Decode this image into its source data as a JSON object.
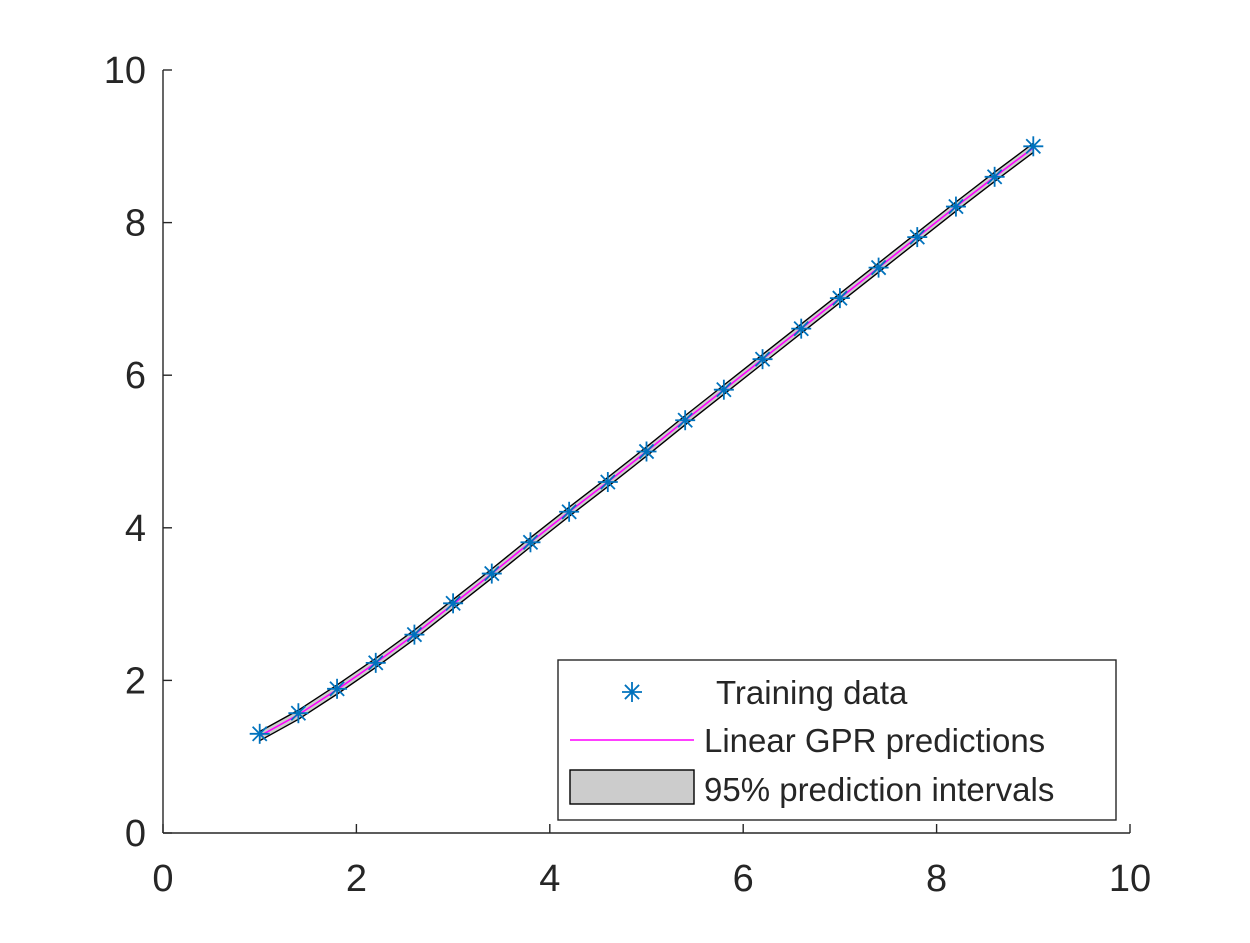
{
  "chart_data": {
    "type": "line",
    "xlim": [
      0,
      10
    ],
    "ylim": [
      0,
      10
    ],
    "x_ticks": [
      "0",
      "2",
      "4",
      "6",
      "8",
      "10"
    ],
    "y_ticks": [
      "0",
      "2",
      "4",
      "6",
      "8",
      "10"
    ],
    "grid": false,
    "legend_position": "bottom-right",
    "series": [
      {
        "name": "Training data",
        "kind": "scatter",
        "marker": "asterisk",
        "color": "#0072BD",
        "x": [
          1.0,
          1.4,
          1.8,
          2.2,
          2.6,
          3.0,
          3.4,
          3.8,
          4.2,
          4.6,
          5.0,
          5.4,
          5.8,
          6.2,
          6.6,
          7.0,
          7.4,
          7.8,
          8.2,
          8.6,
          9.0
        ],
        "y": [
          1.3,
          1.57,
          1.89,
          2.23,
          2.6,
          3.01,
          3.4,
          3.81,
          4.21,
          4.6,
          5.0,
          5.41,
          5.81,
          6.21,
          6.61,
          7.01,
          7.41,
          7.81,
          8.21,
          8.6,
          9.0
        ]
      },
      {
        "name": "Linear GPR predictions",
        "kind": "line",
        "color": "#FF00FF",
        "x": [
          1.0,
          1.4,
          1.8,
          2.2,
          2.6,
          3.0,
          3.4,
          3.8,
          4.2,
          4.6,
          5.0,
          5.4,
          5.8,
          6.2,
          6.6,
          7.0,
          7.4,
          7.8,
          8.2,
          8.6,
          9.0
        ],
        "y": [
          1.27,
          1.55,
          1.88,
          2.23,
          2.6,
          3.0,
          3.4,
          3.81,
          4.21,
          4.6,
          5.0,
          5.41,
          5.81,
          6.21,
          6.61,
          7.01,
          7.41,
          7.81,
          8.21,
          8.6,
          8.98
        ]
      },
      {
        "name": "95% prediction intervals",
        "kind": "band",
        "fill": "#CCCCCC",
        "edge": "#000000",
        "x": [
          1.0,
          1.4,
          1.8,
          2.2,
          2.6,
          3.0,
          3.4,
          3.8,
          4.2,
          4.6,
          5.0,
          5.4,
          5.8,
          6.2,
          6.6,
          7.0,
          7.4,
          7.8,
          8.2,
          8.6,
          9.0
        ],
        "lower": [
          1.21,
          1.49,
          1.82,
          2.17,
          2.54,
          2.94,
          3.34,
          3.75,
          4.15,
          4.54,
          4.94,
          5.35,
          5.75,
          6.15,
          6.55,
          6.95,
          7.35,
          7.75,
          8.15,
          8.54,
          8.92
        ],
        "upper": [
          1.33,
          1.61,
          1.94,
          2.29,
          2.66,
          3.06,
          3.46,
          3.87,
          4.27,
          4.66,
          5.06,
          5.47,
          5.87,
          6.27,
          6.67,
          7.07,
          7.47,
          7.87,
          8.27,
          8.66,
          9.04
        ]
      }
    ]
  }
}
